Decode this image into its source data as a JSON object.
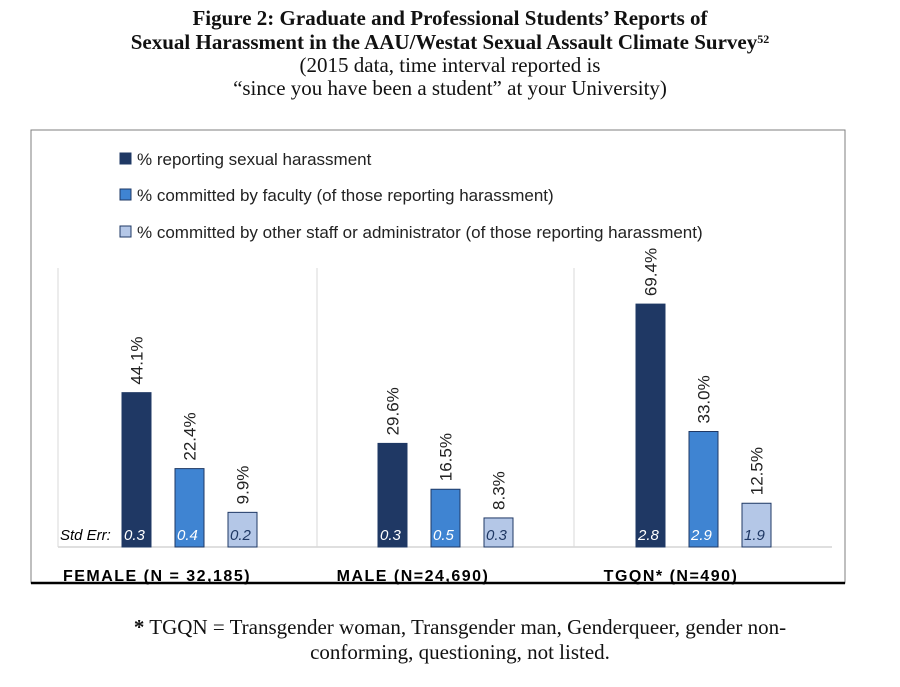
{
  "figure": {
    "title_line1": "Figure 2: Graduate and Professional Students’ Reports of",
    "title_line2": "Sexual Harassment in the AAU/Westat Sexual Assault Climate Survey",
    "title_footnote_ref": "52",
    "subtitle_line1": "(2015 data, time interval reported is",
    "subtitle_line2": "“since you have been a student” at your University)"
  },
  "chart_data": {
    "type": "bar",
    "categories": [
      "FEMALE (N = 32,185)",
      "MALE (N=24,690)",
      "TGQN* (N=490)"
    ],
    "series": [
      {
        "name": "% reporting sexual harassment",
        "values": [
          44.1,
          29.6,
          69.4
        ],
        "labels": [
          "44.1%",
          "29.6%",
          "69.4%"
        ],
        "std_err": [
          "0.3",
          "0.3",
          "2.8"
        ],
        "color": "#1f3864"
      },
      {
        "name": "% committed by faculty (of those reporting harassment)",
        "values": [
          22.4,
          16.5,
          33.0
        ],
        "labels": [
          "22.4%",
          "16.5%",
          "33.0%"
        ],
        "std_err": [
          "0.4",
          "0.5",
          "2.9"
        ],
        "color": "#3f84d2"
      },
      {
        "name": "% committed by other staff or administrator (of those reporting harassment)",
        "values": [
          9.9,
          8.3,
          12.5
        ],
        "labels": [
          "9.9%",
          "8.3%",
          "12.5%"
        ],
        "std_err": [
          "0.2",
          "0.3",
          "1.9"
        ],
        "color": "#b4c7e7"
      }
    ],
    "std_err_label": "Std Err:",
    "ylim": [
      0,
      75
    ],
    "legend_position": "top-left",
    "grid": false
  },
  "footnote": {
    "marker": "*",
    "text_line1": " TGQN = Transgender woman, Transgender man, Genderqueer, gender non-",
    "text_line2": "conforming, questioning, not listed."
  }
}
